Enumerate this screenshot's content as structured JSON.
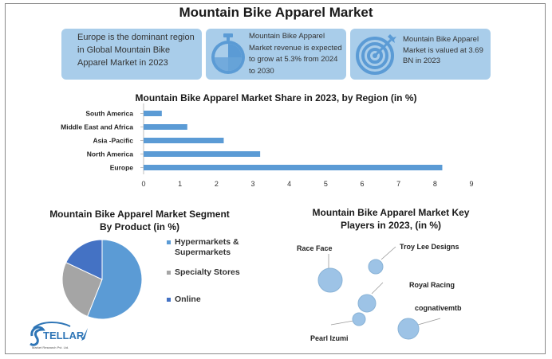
{
  "title": "Mountain Bike Apparel Market",
  "cards": [
    {
      "text": "Europe is the dominant region in Global Mountain Bike Apparel Market in 2023",
      "icon": "none"
    },
    {
      "text": "Mountain Bike Apparel Market revenue is expected to grow at 5.3% from 2024 to 2030",
      "icon": "stopwatch-icon"
    },
    {
      "text": "Mountain Bike Apparel Market is valued at 3.69 BN in 2023",
      "icon": "target-icon"
    }
  ],
  "colors": {
    "accent": "#5b9bd5",
    "card_bg": "#a9cdea",
    "pie_gray": "#a5a5a5",
    "pie_navy": "#4472c4"
  },
  "chart_data": [
    {
      "type": "bar",
      "orientation": "horizontal",
      "title": "Mountain Bike Apparel Market Share in 2023, by Region (in %)",
      "categories": [
        "South America",
        "Middle East and Africa",
        "Asia -Pacific",
        "North America",
        "Europe"
      ],
      "values": [
        0.5,
        1.2,
        2.2,
        3.2,
        8.2
      ],
      "xlim": [
        0,
        9
      ],
      "xticks": [
        "0",
        "1",
        "2",
        "3",
        "4",
        "5",
        "6",
        "7",
        "8",
        "9"
      ],
      "grid": false
    },
    {
      "type": "pie",
      "title": "Mountain Bike Apparel Market Segment By Product (in %)",
      "labels": [
        "Hypermarkets & Supermarkets",
        "Specialty Stores",
        "Online"
      ],
      "values": [
        56,
        26,
        18
      ],
      "colors": [
        "#5b9bd5",
        "#a5a5a5",
        "#4472c4"
      ],
      "legend": "right"
    },
    {
      "type": "scatter",
      "title": "Mountain Bike Apparel Market Key Players in 2023, (in %)",
      "labels": [
        "Race Face",
        "Troy Lee Designs",
        "Royal Racing",
        "cognativemtb",
        "Pearl Izumi"
      ]
    }
  ],
  "logo": {
    "name": "STELLAR",
    "tagline": "Market Research Pvt. Ltd."
  }
}
